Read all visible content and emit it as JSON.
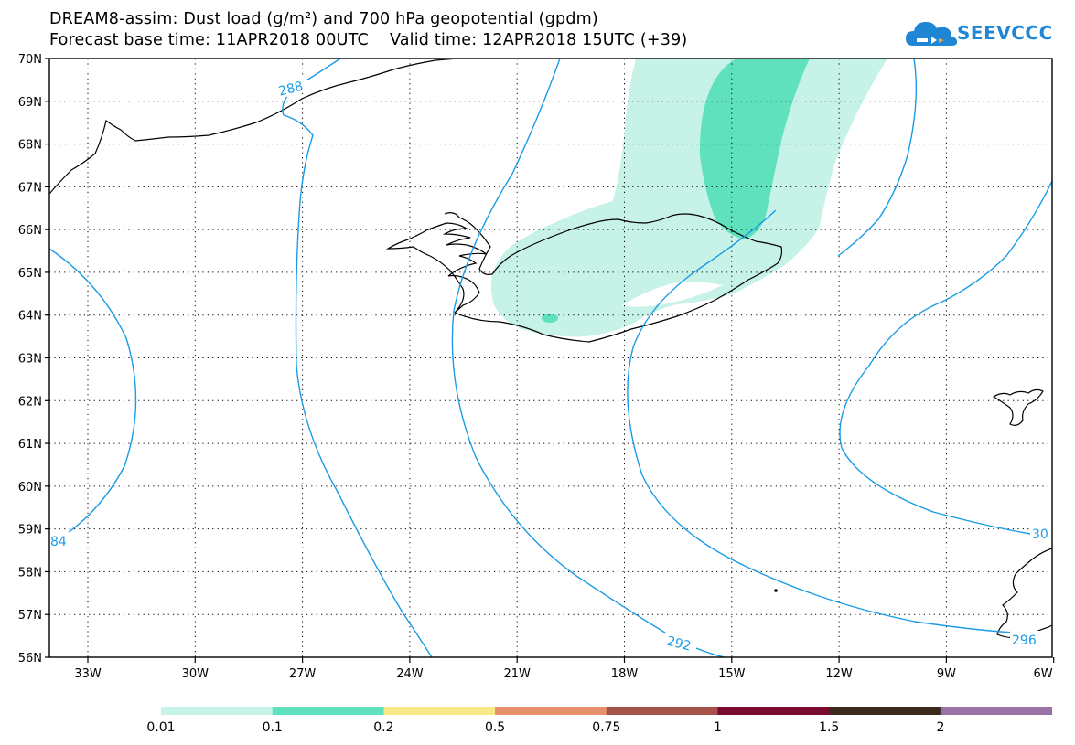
{
  "header": {
    "title_line1": "DREAM8-assim: Dust load (g/m²) and 700 hPa geopotential (gpdm)",
    "title_line2": "Forecast base time: 11APR2018 00UTC    Valid time: 12APR2018 15UTC (+39)"
  },
  "logo": {
    "text": "SEEVCCC",
    "icon": "cloud-logo-icon",
    "color": "#1f86d6"
  },
  "map": {
    "lat_labels": [
      "70N",
      "69N",
      "68N",
      "67N",
      "66N",
      "65N",
      "64N",
      "63N",
      "62N",
      "61N",
      "60N",
      "59N",
      "58N",
      "57N",
      "56N"
    ],
    "lon_labels": [
      "33W",
      "30W",
      "27W",
      "24W",
      "21W",
      "18W",
      "15W",
      "12W",
      "9W",
      "6W"
    ],
    "contour_color": "#1a9be6",
    "contour_labels": [
      "288",
      "292",
      "84",
      "30",
      "296"
    ]
  },
  "colorbar": {
    "colors": [
      "#c6f2e8",
      "#5ee1bc",
      "#f8e887",
      "#e8916d",
      "#a5524a",
      "#7b0a2f",
      "#3a2a1a",
      "#9a72a4"
    ],
    "labels": [
      "0.01",
      "0.1",
      "0.2",
      "0.5",
      "0.75",
      "1",
      "1.5",
      "2"
    ]
  }
}
